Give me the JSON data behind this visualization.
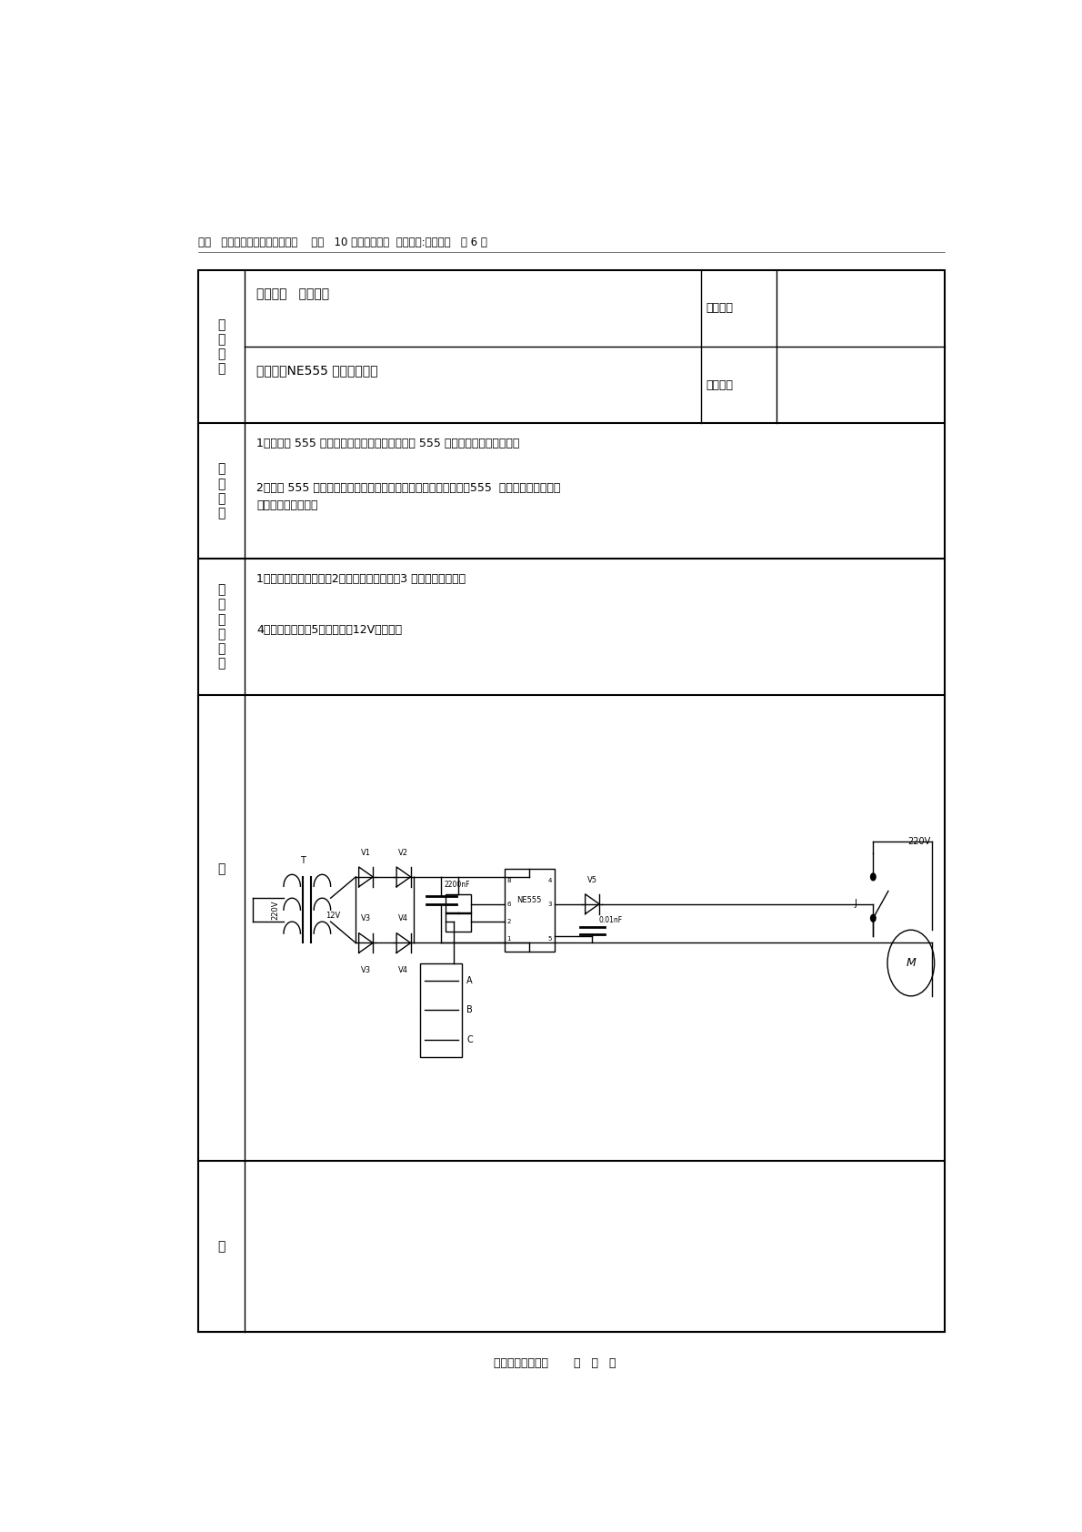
{
  "page_width": 11.9,
  "page_height": 16.84,
  "bg_color": "#ffffff",
  "header_text": "专业   电气自动化设备安装与修理    班级   10 电气一、二班  课程名称:电子模块   共 6 页",
  "row1_label": "总课题：   电子模块",
  "row1_right": "需用课日",
  "row2_label": "课题三：NE555 水位掌握电路",
  "row2_right": "起止日期",
  "objective_text1": "1、能复述 555 定时器的内部电路及其功能表及 555 定时器的几种根本应用。",
  "objective_text2": "2、会进 555 定时器组成多谐振荡器原理图及印制电路板的绘制及555  水位掌握电路原件的\n检测、安装和调试。",
  "tools_text1": "1、电路所需电子元件；2、铆钉电路板一块；3 电烙铁、架一套；",
  "tools_text2": "4、万用表一块；5、变压器（12V）一只。",
  "figure_label": "图",
  "paper_label": "纸",
  "footer_text": "批阅者＿＿＿＿＿       年   月   日"
}
